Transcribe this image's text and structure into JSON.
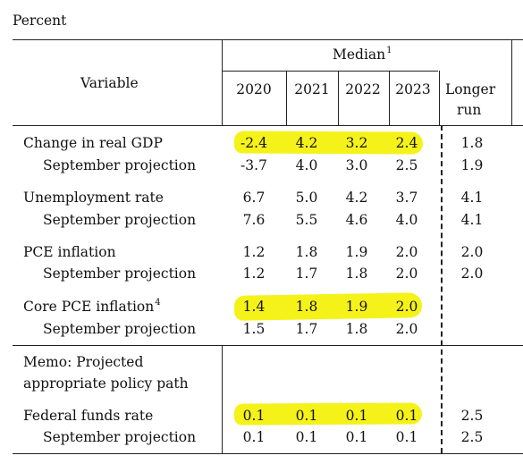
{
  "unit_label": "Percent",
  "header": {
    "variable": "Variable",
    "median": "Median",
    "median_note": "1",
    "years": [
      "2020",
      "2021",
      "2022",
      "2023"
    ],
    "longer_run": [
      "Longer",
      "run"
    ]
  },
  "rows": {
    "gdp": {
      "label": "Change in real GDP",
      "values": [
        "-2.4",
        "4.2",
        "3.2",
        "2.4"
      ],
      "longer": "1.8"
    },
    "gdp_sep": {
      "label": "September projection",
      "values": [
        "-3.7",
        "4.0",
        "3.0",
        "2.5"
      ],
      "longer": "1.9"
    },
    "unemp": {
      "label": "Unemployment rate",
      "values": [
        "6.7",
        "5.0",
        "4.2",
        "3.7"
      ],
      "longer": "4.1"
    },
    "unemp_sep": {
      "label": "September projection",
      "values": [
        "7.6",
        "5.5",
        "4.6",
        "4.0"
      ],
      "longer": "4.1"
    },
    "pce": {
      "label": "PCE inflation",
      "values": [
        "1.2",
        "1.8",
        "1.9",
        "2.0"
      ],
      "longer": "2.0"
    },
    "pce_sep": {
      "label": "September projection",
      "values": [
        "1.2",
        "1.7",
        "1.8",
        "2.0"
      ],
      "longer": "2.0"
    },
    "core": {
      "label": "Core PCE inflation",
      "note": "4",
      "values": [
        "1.4",
        "1.8",
        "1.9",
        "2.0"
      ],
      "longer": ""
    },
    "core_sep": {
      "label": "September projection",
      "values": [
        "1.5",
        "1.7",
        "1.8",
        "2.0"
      ],
      "longer": ""
    },
    "memo": {
      "line1": "Memo: Projected",
      "line2": "appropriate policy path"
    },
    "ffr": {
      "label": "Federal funds rate",
      "values": [
        "0.1",
        "0.1",
        "0.1",
        "0.1"
      ],
      "longer": "2.5"
    },
    "ffr_sep": {
      "label": "September projection",
      "values": [
        "0.1",
        "0.1",
        "0.1",
        "0.1"
      ],
      "longer": "2.5"
    }
  },
  "highlight_color": "#f5f21a"
}
